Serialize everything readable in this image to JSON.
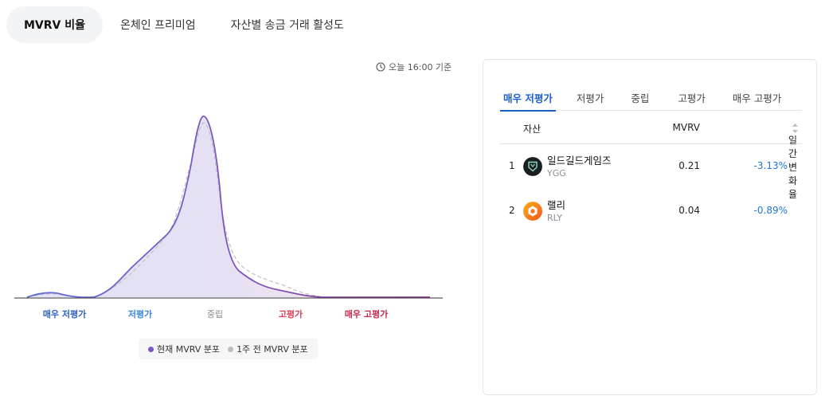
{
  "top_tabs": [
    {
      "label": "MVRV 비율",
      "active": true
    },
    {
      "label": "온체인 프리미엄",
      "active": false
    },
    {
      "label": "자산별 송금 거래 활성도",
      "active": false
    }
  ],
  "timestamp": "오늘 16:00 기준",
  "chart": {
    "zones": [
      {
        "label": "매우 저평가",
        "color": "#2f5fc4"
      },
      {
        "label": "저평가",
        "color": "#3a86e0"
      },
      {
        "label": "중립",
        "color": "#8a8a8a"
      },
      {
        "label": "고평가",
        "color": "#e0415a"
      },
      {
        "label": "매우 고평가",
        "color": "#c7284a"
      }
    ],
    "legend": [
      {
        "label": "현재 MVRV 분포",
        "color": "#7e57c2"
      },
      {
        "label": "1주 전 MVRV 분포",
        "color": "#bdbdbd"
      }
    ]
  },
  "panel": {
    "tabs": [
      {
        "label": "매우 저평가",
        "active": true
      },
      {
        "label": "저평가",
        "active": false
      },
      {
        "label": "중립",
        "active": false
      },
      {
        "label": "고평가",
        "active": false
      },
      {
        "label": "매우 고평가",
        "active": false
      }
    ],
    "columns": {
      "asset": "자산",
      "mvrv": "MVRV",
      "change": "일간 변화율"
    },
    "rows": [
      {
        "rank": "1",
        "name": "일드길드게임즈",
        "ticker": "YGG",
        "mvrv": "0.21",
        "change": "-3.13%",
        "logo_icon": "ygg-logo-icon"
      },
      {
        "rank": "2",
        "name": "랠리",
        "ticker": "RLY",
        "mvrv": "0.04",
        "change": "-0.89%",
        "logo_icon": "rly-logo-icon"
      }
    ]
  }
}
